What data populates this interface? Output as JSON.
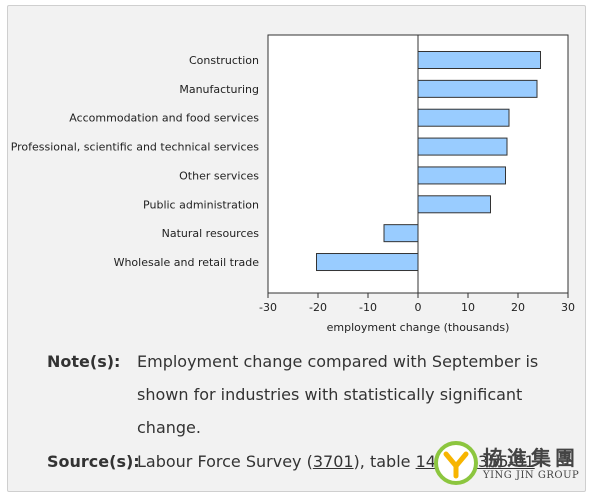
{
  "chart_data": {
    "type": "bar",
    "orientation": "horizontal",
    "categories": [
      "Construction",
      "Manufacturing",
      "Accommodation and food services",
      "Professional, scientific and technical services",
      "Other services",
      "Public administration",
      "Natural resources",
      "Wholesale and retail trade"
    ],
    "values": [
      24.5,
      23.8,
      18.2,
      17.8,
      17.5,
      14.5,
      -6.8,
      -20.3
    ],
    "xlabel": "employment change (thousands)",
    "xlim": [
      -30,
      30
    ],
    "xticks": [
      "-30",
      "-20",
      "-10",
      "0",
      "10",
      "20",
      "30"
    ],
    "bar_color": "#99ccff",
    "grid": false
  },
  "notes": {
    "label": "Note(s):",
    "lines": [
      "Employment change compared with September is",
      "shown for industries with statistically significant",
      "change."
    ]
  },
  "source": {
    "label": "Source(s):",
    "text_before": "Labour Force Survey (",
    "link1": "3701",
    "text_middle": "), table ",
    "link2": "14-10-0355-01"
  },
  "watermark": {
    "chinese": "協進集團",
    "english": "YING JIN GROUP"
  }
}
